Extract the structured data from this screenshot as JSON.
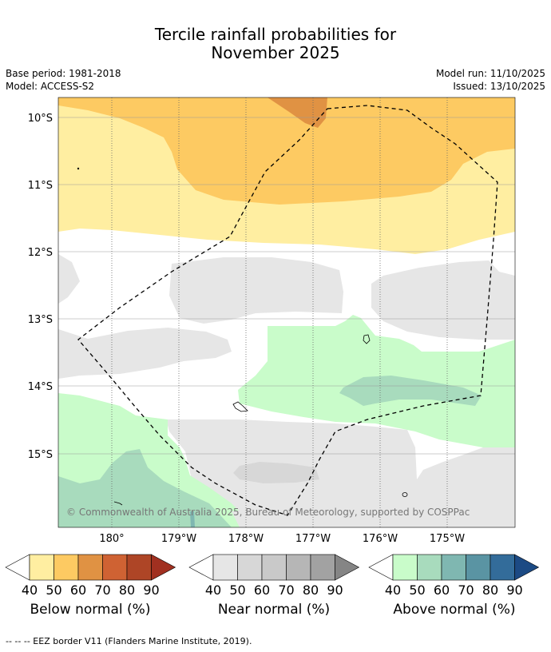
{
  "title_line1": "Tercile rainfall probabilities for",
  "title_line2": "November 2025",
  "base_period": "Base period: 1981-2018",
  "model": "Model: ACCESS-S2",
  "model_run": "Model run: 11/10/2025",
  "issued": "Issued: 13/10/2025",
  "copyright": "© Commonwealth of Australia 2025, Bureau of Meteorology, supported by COSPPac",
  "footnote": "--  --  -- EEZ border V11 (Flanders Marine Institute, 2019).",
  "map": {
    "lat_labels": [
      "10°S",
      "11°S",
      "12°S",
      "13°S",
      "14°S",
      "15°S"
    ],
    "lon_labels": [
      "180°",
      "179°W",
      "178°W",
      "177°W",
      "176°W",
      "175°W"
    ]
  },
  "colorbars": [
    {
      "label": "Below normal (%)",
      "ticks": [
        "40",
        "50",
        "60",
        "70",
        "80",
        "90"
      ],
      "colors": [
        "#ffeea1",
        "#fdca62",
        "#e09243",
        "#cf6233",
        "#ae4526",
        "#a13020"
      ]
    },
    {
      "label": "Near normal (%)",
      "ticks": [
        "40",
        "50",
        "60",
        "70",
        "80",
        "90"
      ],
      "colors": [
        "#e6e6e6",
        "#d7d7d7",
        "#c9c9c9",
        "#b6b6b6",
        "#a2a2a2",
        "#858585"
      ]
    },
    {
      "label": "Above normal (%)",
      "ticks": [
        "40",
        "50",
        "60",
        "70",
        "80",
        "90"
      ],
      "colors": [
        "#c9fcca",
        "#a8dbbd",
        "#7fb7b1",
        "#5a94a3",
        "#336c9a",
        "#1c4a84"
      ]
    }
  ]
}
